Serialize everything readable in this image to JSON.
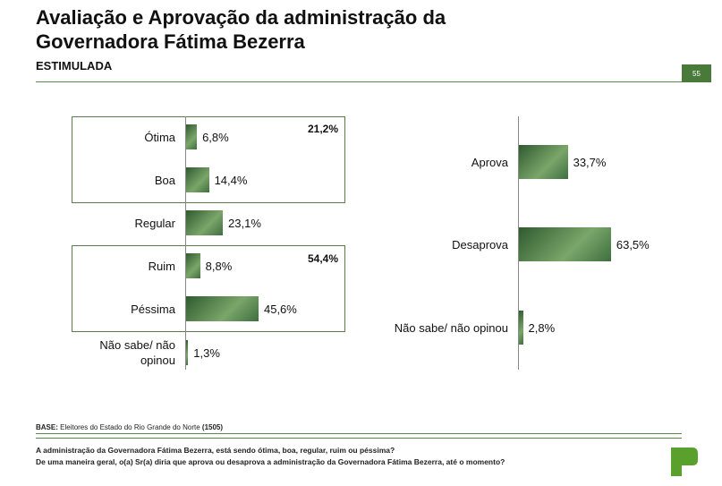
{
  "header": {
    "title": "Avaliação e Aprovação da administração da Governadora Fátima Bezerra",
    "subtitle": "ESTIMULADA",
    "page": "55"
  },
  "chart_data": [
    {
      "type": "bar",
      "orientation": "horizontal",
      "color": "#3f6e3f",
      "categories": [
        "Ótima",
        "Boa",
        "Regular",
        "Ruim",
        "Péssima",
        "Não sabe/ não opinou"
      ],
      "values": [
        6.8,
        14.4,
        23.1,
        8.8,
        45.6,
        1.3
      ],
      "value_labels": [
        "6,8%",
        "14,4%",
        "23,1%",
        "8,8%",
        "45,6%",
        "1,3%"
      ],
      "annotations": [
        "21,2%",
        "54,4%"
      ]
    },
    {
      "type": "bar",
      "orientation": "horizontal",
      "color": "#3f6e3f",
      "categories": [
        "Aprova",
        "Desaprova",
        "Não sabe/ não opinou"
      ],
      "values": [
        33.7,
        63.5,
        2.8
      ],
      "value_labels": [
        "33,7%",
        "63,5%",
        "2,8%"
      ]
    }
  ],
  "footer": {
    "base_label": "BASE:",
    "base_text": "Eleitores do Estado do Rio Grande do Norte",
    "base_n": "(1505)",
    "questions": [
      "A administração da Governadora Fátima Bezerra, está sendo ótima, boa, regular, ruim ou péssima?",
      "De uma maneira geral, o(a) Sr(a) diria que aprova ou desaprova a administração da Governadora Fátima Bezerra, até o momento?"
    ]
  }
}
